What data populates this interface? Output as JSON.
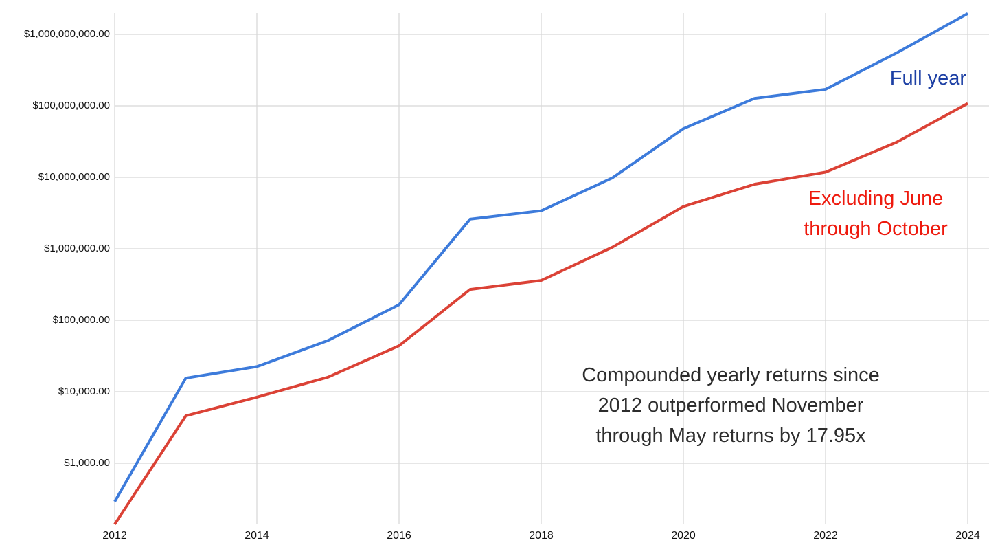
{
  "chart_data": {
    "type": "line",
    "title": "",
    "xlabel": "",
    "ylabel": "",
    "background_color": "#FFFFFF",
    "gridline_color": "#D8D8D8",
    "grid": true,
    "x_axis": {
      "ticks": [
        2012,
        2014,
        2016,
        2018,
        2020,
        2022,
        2024
      ],
      "tick_labels": [
        "2012",
        "2014",
        "2016",
        "2018",
        "2020",
        "2022",
        "2024"
      ],
      "range": [
        2012,
        2024
      ]
    },
    "y_axis": {
      "scale": "log",
      "ticks": [
        {
          "value": 1000000000,
          "label": "$1,000,000,000.00"
        },
        {
          "value": 100000000,
          "label": "$100,000,000.00"
        },
        {
          "value": 10000000,
          "label": "$10,000,000.00"
        },
        {
          "value": 1000000,
          "label": "$1,000,000.00"
        },
        {
          "value": 100000,
          "label": "$100,000.00"
        },
        {
          "value": 10000,
          "label": "$10,000.00"
        },
        {
          "value": 1000,
          "label": "$1,000.00"
        }
      ]
    },
    "x": [
      2012,
      2013,
      2014,
      2015,
      2016,
      2017,
      2018,
      2019,
      2020,
      2021,
      2022,
      2023,
      2024
    ],
    "series": [
      {
        "name": "Full year",
        "label_lines": [
          "Full year"
        ],
        "line_color": "#3D7BDB",
        "label_color": "#1C3FA4",
        "values": [
          290,
          15500,
          22500,
          52000,
          165000,
          2600000,
          3400000,
          9800000,
          48000000,
          127000000,
          170000000,
          550000000,
          1950000000
        ]
      },
      {
        "name": "Excluding June through October",
        "label_lines": [
          "Excluding June",
          "through October"
        ],
        "line_color": "#DB4236",
        "label_color": "#EE1A0E",
        "values": [
          140,
          4600,
          8400,
          16000,
          44000,
          270000,
          360000,
          1050000,
          3900000,
          8000000,
          11800000,
          31000000,
          108000000
        ]
      }
    ],
    "annotation": {
      "color": "#2D2D2D",
      "lines": [
        "Compounded yearly returns since",
        "2012 outperformed November",
        "through May returns by 17.95x"
      ]
    },
    "legend_position": "labels-near-lines"
  }
}
